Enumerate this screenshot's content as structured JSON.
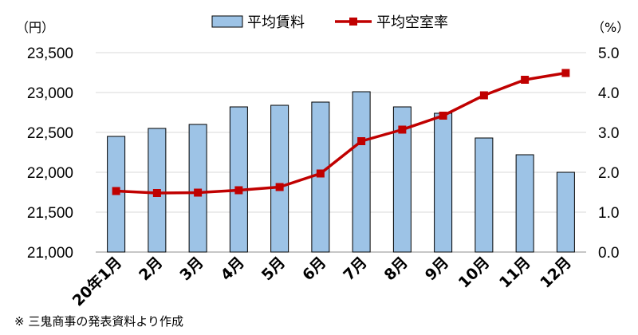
{
  "chart_data": {
    "type": "bar",
    "categories": [
      "20年1月",
      "2月",
      "3月",
      "4月",
      "5月",
      "6月",
      "7月",
      "8月",
      "9月",
      "10月",
      "11月",
      "12月"
    ],
    "series": [
      {
        "name": "平均賃料",
        "type": "bar",
        "axis": "left",
        "color": "#9dc3e6",
        "values": [
          22450,
          22550,
          22600,
          22820,
          22840,
          22880,
          23010,
          22820,
          22740,
          22430,
          22220,
          22000
        ]
      },
      {
        "name": "平均空室率",
        "type": "line",
        "axis": "right",
        "color": "#c00000",
        "marker": "square",
        "values": [
          1.53,
          1.48,
          1.49,
          1.55,
          1.63,
          1.97,
          2.78,
          3.07,
          3.42,
          3.93,
          4.32,
          4.49
        ]
      }
    ],
    "y_left": {
      "unit": "（円）",
      "range": [
        21000,
        23500
      ],
      "ticks": [
        "21,000",
        "21,500",
        "22,000",
        "22,500",
        "23,000",
        "23,500"
      ]
    },
    "y_right": {
      "unit": "（%）",
      "range": [
        0,
        5
      ],
      "ticks": [
        "0.0",
        "1.0",
        "2.0",
        "3.0",
        "4.0",
        "5.0"
      ]
    },
    "grid": true,
    "legend_position": "top-center"
  },
  "footnote": "※ 三鬼商事の発表資料より作成"
}
